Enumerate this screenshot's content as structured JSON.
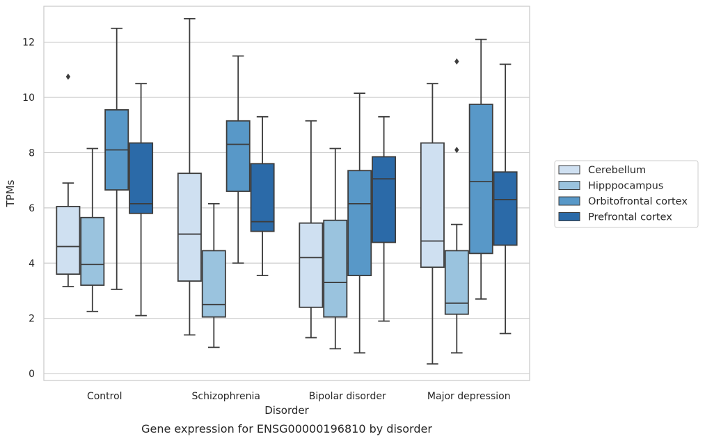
{
  "chart_data": {
    "type": "box",
    "caption": "Gene expression for ENSG00000196810 by disorder",
    "xlabel": "Disorder",
    "ylabel": "TPMs",
    "ylim": [
      -0.25,
      13.3
    ],
    "yticks": [
      0,
      2,
      4,
      6,
      8,
      10,
      12
    ],
    "grid": "horizontal",
    "legend_position": "right",
    "categories": [
      "Control",
      "Schizophrenia",
      "Bipolar disorder",
      "Major depression"
    ],
    "series": [
      {
        "name": "Cerebellum",
        "color": "#cfe0f1",
        "boxes": [
          {
            "whisker_low": 3.15,
            "q1": 3.6,
            "median": 4.6,
            "q3": 6.05,
            "whisker_high": 6.9,
            "outliers": [
              10.75
            ]
          },
          {
            "whisker_low": 1.4,
            "q1": 3.35,
            "median": 5.05,
            "q3": 7.25,
            "whisker_high": 12.85,
            "outliers": []
          },
          {
            "whisker_low": 1.3,
            "q1": 2.4,
            "median": 4.2,
            "q3": 5.45,
            "whisker_high": 9.15,
            "outliers": []
          },
          {
            "whisker_low": 0.35,
            "q1": 3.85,
            "median": 4.8,
            "q3": 8.35,
            "whisker_high": 10.5,
            "outliers": []
          }
        ]
      },
      {
        "name": "Hipppocampus",
        "color": "#9ac3de",
        "boxes": [
          {
            "whisker_low": 2.25,
            "q1": 3.2,
            "median": 3.95,
            "q3": 5.65,
            "whisker_high": 8.15,
            "outliers": []
          },
          {
            "whisker_low": 0.95,
            "q1": 2.05,
            "median": 2.5,
            "q3": 4.45,
            "whisker_high": 6.15,
            "outliers": []
          },
          {
            "whisker_low": 0.9,
            "q1": 2.05,
            "median": 3.3,
            "q3": 5.55,
            "whisker_high": 8.15,
            "outliers": []
          },
          {
            "whisker_low": 0.75,
            "q1": 2.15,
            "median": 2.55,
            "q3": 4.45,
            "whisker_high": 5.4,
            "outliers": [
              8.1,
              11.3
            ]
          }
        ]
      },
      {
        "name": "Orbitofrontal cortex",
        "color": "#5898c8",
        "boxes": [
          {
            "whisker_low": 3.05,
            "q1": 6.65,
            "median": 8.1,
            "q3": 9.55,
            "whisker_high": 12.5,
            "outliers": []
          },
          {
            "whisker_low": 4.0,
            "q1": 6.6,
            "median": 8.3,
            "q3": 9.15,
            "whisker_high": 11.5,
            "outliers": []
          },
          {
            "whisker_low": 0.75,
            "q1": 3.55,
            "median": 6.15,
            "q3": 7.35,
            "whisker_high": 10.15,
            "outliers": []
          },
          {
            "whisker_low": 2.7,
            "q1": 4.35,
            "median": 6.95,
            "q3": 9.75,
            "whisker_high": 12.1,
            "outliers": []
          }
        ]
      },
      {
        "name": "Prefrontal cortex",
        "color": "#2b6aa8",
        "boxes": [
          {
            "whisker_low": 2.1,
            "q1": 5.8,
            "median": 6.15,
            "q3": 8.35,
            "whisker_high": 10.5,
            "outliers": []
          },
          {
            "whisker_low": 3.55,
            "q1": 5.15,
            "median": 5.5,
            "q3": 7.6,
            "whisker_high": 9.3,
            "outliers": []
          },
          {
            "whisker_low": 1.9,
            "q1": 4.75,
            "median": 7.05,
            "q3": 7.85,
            "whisker_high": 9.3,
            "outliers": []
          },
          {
            "whisker_low": 1.45,
            "q1": 4.65,
            "median": 6.3,
            "q3": 7.3,
            "whisker_high": 11.2,
            "outliers": []
          }
        ]
      }
    ]
  }
}
